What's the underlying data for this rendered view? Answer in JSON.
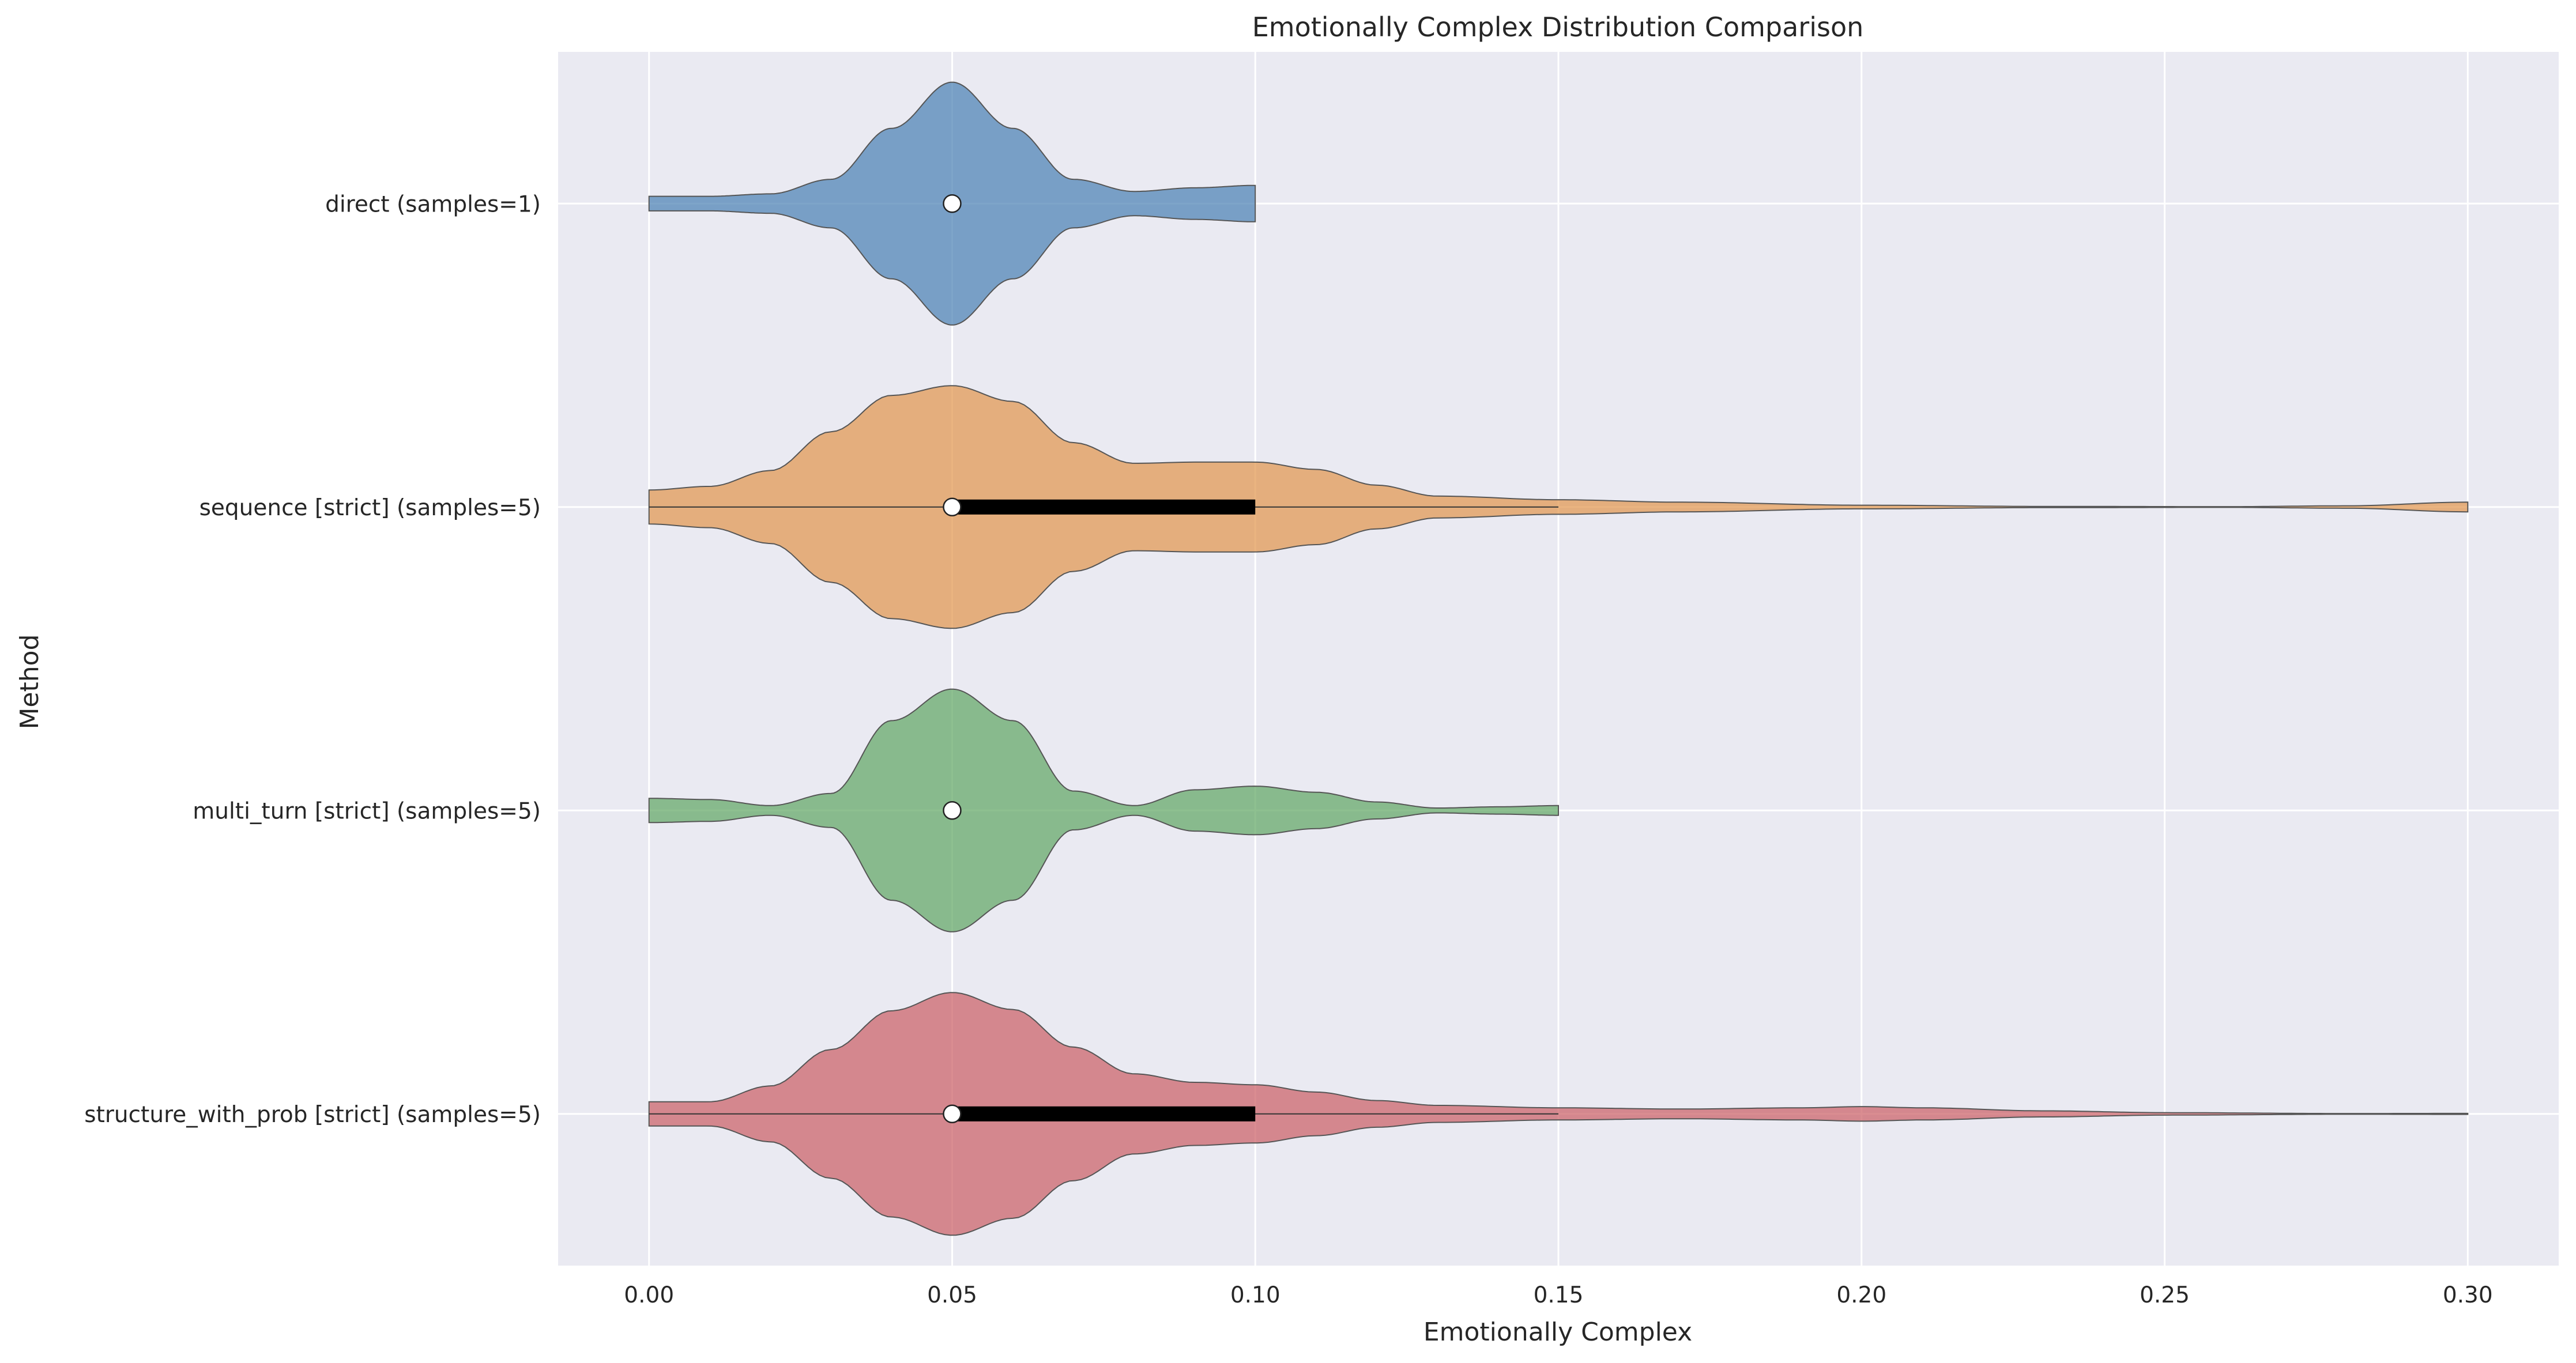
{
  "chart_data": {
    "type": "violin",
    "orientation": "horizontal",
    "title": "Emotionally Complex Distribution Comparison",
    "xlabel": "Emotionally Complex",
    "ylabel": "Method",
    "xlim": [
      -0.015,
      0.315
    ],
    "xticks": [
      0.0,
      0.05,
      0.1,
      0.15,
      0.2,
      0.25,
      0.3
    ],
    "xtick_labels": [
      "0.00",
      "0.05",
      "0.10",
      "0.15",
      "0.20",
      "0.25",
      "0.30"
    ],
    "grid": true,
    "background": "#eaeaf2",
    "series": [
      {
        "label": "direct (samples=1)",
        "color": "#4c82b4",
        "range": [
          0.0,
          0.1
        ],
        "median": 0.05,
        "q1": 0.05,
        "q3": 0.05,
        "whisker_low": 0.05,
        "whisker_high": 0.05,
        "density": [
          [
            0.0,
            0.06
          ],
          [
            0.01,
            0.06
          ],
          [
            0.02,
            0.08
          ],
          [
            0.03,
            0.2
          ],
          [
            0.04,
            0.62
          ],
          [
            0.05,
            1.0
          ],
          [
            0.06,
            0.62
          ],
          [
            0.07,
            0.2
          ],
          [
            0.08,
            0.1
          ],
          [
            0.09,
            0.13
          ],
          [
            0.1,
            0.15
          ]
        ]
      },
      {
        "label": "sequence [strict] (samples=5)",
        "color": "#e2974f",
        "range": [
          0.0,
          0.3
        ],
        "median": 0.05,
        "q1": 0.05,
        "q3": 0.1,
        "whisker_low": 0.0,
        "whisker_high": 0.15,
        "density": [
          [
            0.0,
            0.14
          ],
          [
            0.01,
            0.17
          ],
          [
            0.02,
            0.3
          ],
          [
            0.03,
            0.62
          ],
          [
            0.04,
            0.92
          ],
          [
            0.05,
            1.0
          ],
          [
            0.06,
            0.87
          ],
          [
            0.07,
            0.53
          ],
          [
            0.08,
            0.36
          ],
          [
            0.09,
            0.37
          ],
          [
            0.1,
            0.37
          ],
          [
            0.11,
            0.31
          ],
          [
            0.12,
            0.18
          ],
          [
            0.13,
            0.09
          ],
          [
            0.15,
            0.06
          ],
          [
            0.17,
            0.04
          ],
          [
            0.2,
            0.015
          ],
          [
            0.23,
            0.005
          ],
          [
            0.26,
            0.003
          ],
          [
            0.28,
            0.01
          ],
          [
            0.3,
            0.04
          ]
        ]
      },
      {
        "label": "multi_turn [strict] (samples=5)",
        "color": "#63a865",
        "range": [
          0.0,
          0.15
        ],
        "median": 0.05,
        "q1": 0.05,
        "q3": 0.05,
        "whisker_low": 0.05,
        "whisker_high": 0.05,
        "density": [
          [
            0.0,
            0.1
          ],
          [
            0.01,
            0.09
          ],
          [
            0.02,
            0.04
          ],
          [
            0.03,
            0.14
          ],
          [
            0.04,
            0.74
          ],
          [
            0.05,
            1.0
          ],
          [
            0.06,
            0.74
          ],
          [
            0.07,
            0.16
          ],
          [
            0.08,
            0.04
          ],
          [
            0.09,
            0.17
          ],
          [
            0.1,
            0.2
          ],
          [
            0.11,
            0.15
          ],
          [
            0.12,
            0.07
          ],
          [
            0.13,
            0.02
          ],
          [
            0.14,
            0.03
          ],
          [
            0.15,
            0.04
          ]
        ]
      },
      {
        "label": "structure_with_prob [strict] (samples=5)",
        "color": "#cc6166",
        "range": [
          0.0,
          0.3
        ],
        "median": 0.05,
        "q1": 0.05,
        "q3": 0.1,
        "whisker_low": 0.0,
        "whisker_high": 0.15,
        "density": [
          [
            0.0,
            0.1
          ],
          [
            0.01,
            0.1
          ],
          [
            0.02,
            0.23
          ],
          [
            0.03,
            0.53
          ],
          [
            0.04,
            0.85
          ],
          [
            0.05,
            1.0
          ],
          [
            0.06,
            0.86
          ],
          [
            0.07,
            0.55
          ],
          [
            0.08,
            0.33
          ],
          [
            0.09,
            0.26
          ],
          [
            0.1,
            0.24
          ],
          [
            0.11,
            0.18
          ],
          [
            0.12,
            0.11
          ],
          [
            0.13,
            0.07
          ],
          [
            0.15,
            0.05
          ],
          [
            0.17,
            0.04
          ],
          [
            0.19,
            0.05
          ],
          [
            0.2,
            0.06
          ],
          [
            0.21,
            0.05
          ],
          [
            0.23,
            0.025
          ],
          [
            0.25,
            0.01
          ],
          [
            0.28,
            0.003
          ],
          [
            0.3,
            0.004
          ]
        ]
      }
    ]
  }
}
